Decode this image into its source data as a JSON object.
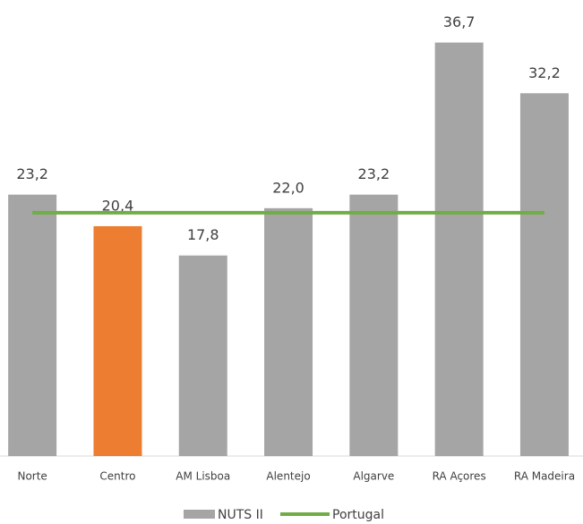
{
  "chart_data": {
    "type": "bar",
    "categories": [
      "Norte",
      "Centro",
      "AM Lisboa",
      "Alentejo",
      "Algarve",
      "RA Açores",
      "RA Madeira"
    ],
    "series": [
      {
        "name": "NUTS II",
        "color": "#a5a5a5",
        "colors": [
          "#a5a5a5",
          "#ed7d31",
          "#a5a5a5",
          "#a5a5a5",
          "#a5a5a5",
          "#a5a5a5",
          "#a5a5a5"
        ],
        "values": [
          23.2,
          20.4,
          17.8,
          22.0,
          23.2,
          36.7,
          32.2
        ],
        "value_labels": [
          "23,2",
          "20,4",
          "17,8",
          "22,0",
          "23,2",
          "36,7",
          "32,2"
        ]
      },
      {
        "name": "Portugal",
        "type": "line",
        "color": "#70ad47",
        "values": [
          21.6,
          21.6,
          21.6,
          21.6,
          21.6,
          21.6,
          21.6
        ]
      }
    ],
    "ylim": [
      0,
      40
    ],
    "legend": "bottom"
  }
}
